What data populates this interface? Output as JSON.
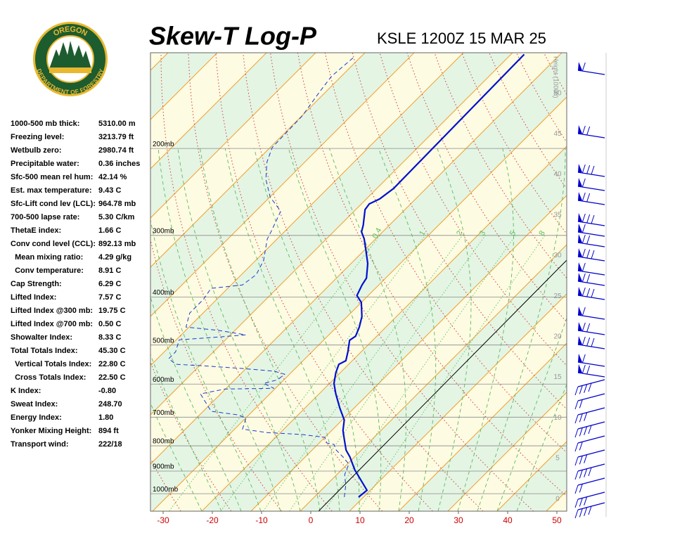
{
  "logo": {
    "top": "OREGON",
    "bottom": "DEPARTMENT OF FORESTRY"
  },
  "stats": [
    {
      "label": "1000-500 mb thick:",
      "value": "5310.00 m"
    },
    {
      "label": "Freezing level:",
      "value": "3213.79 ft"
    },
    {
      "label": "Wetbulb zero:",
      "value": "2980.74 ft"
    },
    {
      "label": "Precipitable water:",
      "value": "0.36 inches"
    },
    {
      "label": "Sfc-500 mean rel hum:",
      "value": "42.14 %"
    },
    {
      "label": "Est. max temperature:",
      "value": "9.43 C"
    },
    {
      "label": "Sfc-Lift cond lev (LCL):",
      "value": "964.78 mb"
    },
    {
      "label": "700-500 lapse rate:",
      "value": "5.30 C/km"
    },
    {
      "label": "ThetaE index:",
      "value": "1.66 C"
    },
    {
      "label": "Conv cond level (CCL):",
      "value": "892.13 mb"
    },
    {
      "label": "  Mean mixing ratio:",
      "value": "4.29 g/kg"
    },
    {
      "label": "  Conv temperature:",
      "value": "8.91 C"
    },
    {
      "label": "Cap Strength:",
      "value": "6.29 C"
    },
    {
      "label": "Lifted Index:",
      "value": "7.57 C"
    },
    {
      "label": "Lifted Index @300 mb:",
      "value": "19.75 C"
    },
    {
      "label": "Lifted Index @700 mb:",
      "value": "0.50 C"
    },
    {
      "label": "Showalter Index:",
      "value": "8.33 C"
    },
    {
      "label": "Total Totals Index:",
      "value": "45.30 C"
    },
    {
      "label": "  Vertical Totals Index:",
      "value": "22.80 C"
    },
    {
      "label": "  Cross Totals Index:",
      "value": "22.50 C"
    },
    {
      "label": "K Index:",
      "value": "-0.80"
    },
    {
      "label": "Sweat Index:",
      "value": "248.70"
    },
    {
      "label": "Energy Index:",
      "value": "1.80"
    },
    {
      "label": "Yonker Mixing Height:",
      "value": "894 ft"
    },
    {
      "label": "Transport wind:",
      "value": "222/18"
    }
  ],
  "chart_data": {
    "type": "skewt",
    "title": "Skew-T Log-P",
    "subtitle": "KSLE 1200Z 15 MAR 25",
    "log_y": true,
    "ylim": [
      1085,
      128
    ],
    "yticks": [
      {
        "value": 200,
        "label": "200mb"
      },
      {
        "value": 300,
        "label": "300mb"
      },
      {
        "value": 400,
        "label": "400mb"
      },
      {
        "value": 500,
        "label": "500mb"
      },
      {
        "value": 600,
        "label": "600mb"
      },
      {
        "value": 700,
        "label": "700mb"
      },
      {
        "value": 800,
        "label": "800mb"
      },
      {
        "value": 900,
        "label": "900mb"
      },
      {
        "value": 1000,
        "label": "1000mb"
      }
    ],
    "xlim": [
      -30,
      50
    ],
    "xticks": [
      -30,
      -20,
      -10,
      0,
      10,
      20,
      30,
      40,
      50
    ],
    "y2_label": "Height (1000ft)",
    "y2lim": [
      -1.5,
      55
    ],
    "y2ticks": [
      0,
      5,
      10,
      15,
      20,
      25,
      30,
      35,
      40,
      45,
      50
    ],
    "mixing_ratios": [
      0.4,
      1,
      2,
      3,
      5,
      8
    ],
    "isotherm_color": "#f0a030",
    "dry_adiabat_color": "#d04040",
    "moist_adiabat_color": "#60b860",
    "mixing_ratio_color": "#60c060",
    "series": [
      {
        "color": "#0010d0",
        "values": [
          1016,
          984,
          895,
          843,
          816,
          777,
          745,
          709,
          671,
          628,
          598,
          569,
          547,
          538,
          516,
          489,
          480,
          460,
          438,
          410,
          397,
          378,
          366,
          342,
          320,
          305,
          295,
          286,
          266,
          259,
          253,
          241,
          129
        ],
        "x": [
          9.0,
          9.3,
          2.7,
          -0.9,
          -3.1,
          -5.6,
          -7.7,
          -9.6,
          -12.9,
          -16.6,
          -19.1,
          -20.9,
          -22.0,
          -21.3,
          -22.7,
          -24.7,
          -24.3,
          -25.4,
          -27.0,
          -30.0,
          -32.3,
          -33.4,
          -33.9,
          -36.6,
          -39.9,
          -42.3,
          -44.3,
          -45.3,
          -48.1,
          -48.4,
          -47.3,
          -46.6,
          -47.3
        ]
      },
      {
        "color": "#1a3acc",
        "dashed": true,
        "values": [
          1016,
          962,
          915,
          871,
          843,
          816,
          795,
          790,
          769,
          759,
          752,
          740,
          704,
          693,
          681,
          628,
          614,
          612,
          598,
          588,
          573,
          565,
          558,
          551,
          547,
          533,
          516,
          488,
          483,
          477,
          467,
          460,
          431,
          404,
          384,
          378,
          360,
          337,
          305,
          295,
          268,
          251,
          231,
          213,
          199,
          172,
          153,
          143,
          130
        ],
        "x": [
          6.1,
          4.0,
          1.6,
          0.3,
          -2.3,
          -5.1,
          -6.7,
          -8.4,
          -10.0,
          -15.1,
          -22.7,
          -28.4,
          -29.9,
          -32.0,
          -38.4,
          -44.1,
          -40.1,
          -30.3,
          -33.4,
          -31.3,
          -31.0,
          -33.7,
          -40.7,
          -49.1,
          -55.1,
          -57.7,
          -57.7,
          -59.4,
          -53.4,
          -46.9,
          -53.4,
          -60.6,
          -62.7,
          -62.7,
          -63.4,
          -57.7,
          -57.0,
          -58.4,
          -62.0,
          -62.7,
          -64.9,
          -69.9,
          -74.4,
          -77.7,
          -79.6,
          -79.9,
          -81.3,
          -82.0,
          -81.3
        ]
      }
    ]
  }
}
